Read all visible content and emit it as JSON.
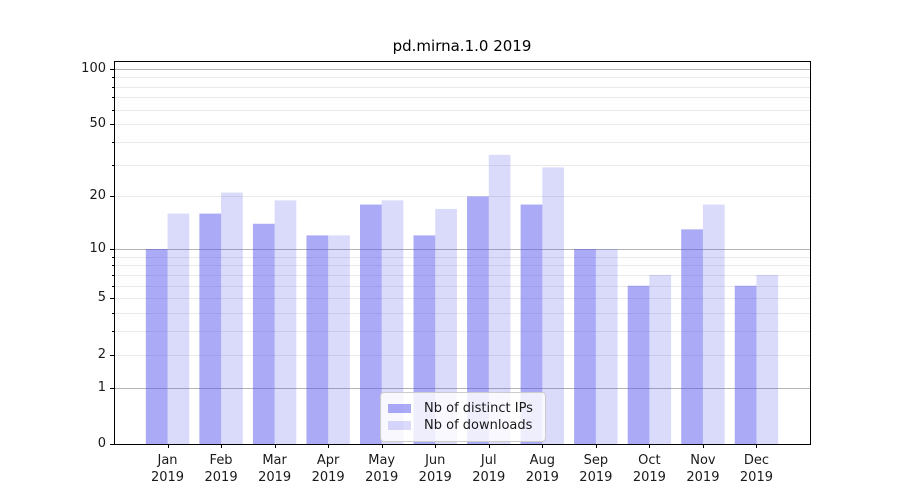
{
  "chart_data": {
    "type": "bar",
    "title": "pd.mirna.1.0 2019",
    "categories": [
      "Jan",
      "Feb",
      "Mar",
      "Apr",
      "May",
      "Jun",
      "Jul",
      "Aug",
      "Sep",
      "Oct",
      "Nov",
      "Dec"
    ],
    "year_label": "2019",
    "series": [
      {
        "name": "Nb of distinct IPs",
        "values": [
          10,
          16,
          14,
          12,
          18,
          12,
          20,
          18,
          10,
          6,
          13,
          6
        ],
        "color": "#5555ee",
        "fill_opacity": 0.5
      },
      {
        "name": "Nb of downloads",
        "values": [
          16,
          21,
          19,
          12,
          19,
          17,
          34,
          29,
          10,
          7,
          18,
          7
        ],
        "color": "#5555ee",
        "fill_opacity": 0.22
      }
    ],
    "y_axis": {
      "scale": "log1p",
      "ticks": [
        0,
        1,
        2,
        5,
        10,
        20,
        50,
        100
      ],
      "minor_gridlines": [
        2,
        3,
        4,
        5,
        6,
        7,
        8,
        9,
        20,
        30,
        40,
        50,
        60,
        70,
        80,
        90
      ],
      "major_gridlines": [
        1,
        10,
        100
      ],
      "ylim": [
        0,
        110
      ]
    },
    "xlabel": "",
    "ylabel": "",
    "grid": true,
    "legend_position": "lower center",
    "colors": {
      "major_grid": "#b3b3b3",
      "minor_grid": "#e9e9e9",
      "axis": "#000000",
      "tick_text": "#1a1a1a",
      "background": "#ffffff"
    }
  }
}
